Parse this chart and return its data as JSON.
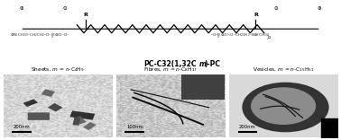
{
  "bg_color": "#f5f5f5",
  "title_text": "PC-C32(1,32C ϵ)-PC",
  "title_bold": true,
  "panel_labels": [
    "Sheets, ϵ = Ϸ-C₄H₉",
    "Fibres, ϵ = Ϸ-C₈H₁₇",
    "Vesicles, ϵ = Ϸ-C₁₅H₃₁"
  ],
  "scale_labels": [
    "200nm",
    "100nm",
    "200nm"
  ],
  "structure_formula_text": "PC-C32(1,32Cm)-PC",
  "overall_bg": "#f0f0f0"
}
